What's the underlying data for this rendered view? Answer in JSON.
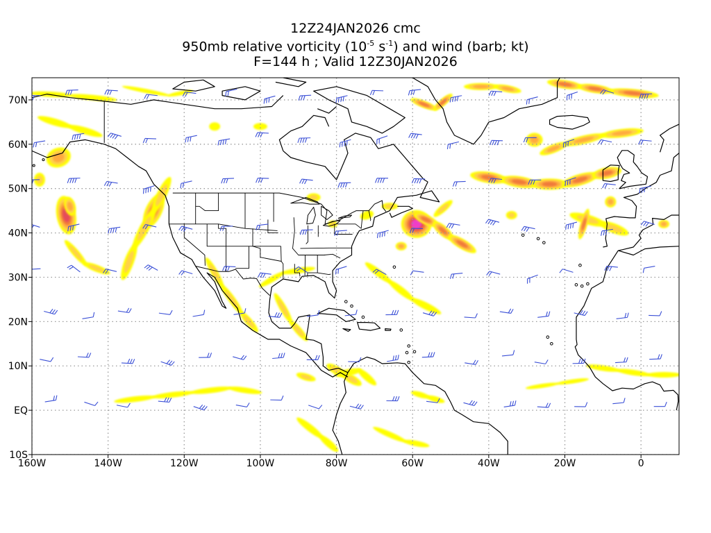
{
  "title": {
    "line1": "12Z24JAN2026 cmc",
    "line2_prefix": "950mb relative vorticity (10",
    "line2_exp1": "-5",
    "line2_mid": " s",
    "line2_exp2": "-1",
    "line2_suffix": ") and wind (barb; kt)",
    "line3": "F=144 h ; Valid 12Z30JAN2026"
  },
  "map": {
    "projection": "lat-lon",
    "lon_range": [
      -160,
      10
    ],
    "lat_range": [
      -10,
      75
    ],
    "gridlines": "dotted",
    "barb_color": "#3a4fd6",
    "coastline_color": "#000000",
    "shading_colors": [
      "#ffff00",
      "#ffd24a",
      "#ffaa3c",
      "#f07a3a",
      "#e64b5a",
      "#f03cc8"
    ],
    "lat_ticks": [
      {
        "value": 70,
        "label": "70N"
      },
      {
        "value": 60,
        "label": "60N"
      },
      {
        "value": 50,
        "label": "50N"
      },
      {
        "value": 40,
        "label": "40N"
      },
      {
        "value": 30,
        "label": "30N"
      },
      {
        "value": 20,
        "label": "20N"
      },
      {
        "value": 10,
        "label": "10N"
      },
      {
        "value": 0,
        "label": "EQ"
      },
      {
        "value": -10,
        "label": "10S"
      }
    ],
    "lon_ticks": [
      {
        "value": -160,
        "label": "160W"
      },
      {
        "value": -140,
        "label": "140W"
      },
      {
        "value": -120,
        "label": "120W"
      },
      {
        "value": -100,
        "label": "100W"
      },
      {
        "value": -80,
        "label": "80W"
      },
      {
        "value": -60,
        "label": "60W"
      },
      {
        "value": -40,
        "label": "40W"
      },
      {
        "value": -20,
        "label": "20W"
      },
      {
        "value": 0,
        "label": "0"
      }
    ]
  }
}
